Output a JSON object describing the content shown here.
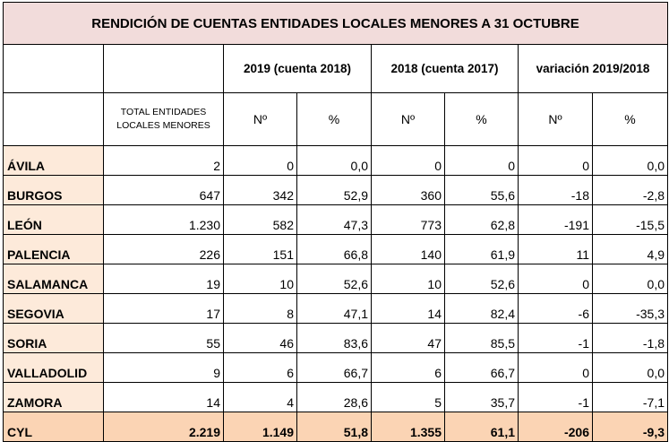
{
  "title": "RENDICIÓN DE CUENTAS ENTIDADES LOCALES MENORES A 31 OCTUBRE",
  "group_headers": [
    "2019 (cuenta 2018)",
    "2018 (cuenta 2017)",
    "variación 2019/2018"
  ],
  "total_header": "TOTAL ENTIDADES LOCALES MENORES",
  "sub_headers": [
    "Nº",
    "%",
    "Nº",
    "%",
    "Nº",
    "%"
  ],
  "rows": [
    {
      "region": "ÁVILA",
      "values": [
        "2",
        "0",
        "0,0",
        "0",
        "0",
        "0",
        "0,0"
      ]
    },
    {
      "region": "BURGOS",
      "values": [
        "647",
        "342",
        "52,9",
        "360",
        "55,6",
        "-18",
        "-2,8"
      ]
    },
    {
      "region": "LEÓN",
      "values": [
        "1.230",
        "582",
        "47,3",
        "773",
        "62,8",
        "-191",
        "-15,5"
      ]
    },
    {
      "region": "PALENCIA",
      "values": [
        "226",
        "151",
        "66,8",
        "140",
        "61,9",
        "11",
        "4,9"
      ]
    },
    {
      "region": "SALAMANCA",
      "values": [
        "19",
        "10",
        "52,6",
        "10",
        "52,6",
        "0",
        "0,0"
      ]
    },
    {
      "region": "SEGOVIA",
      "values": [
        "17",
        "8",
        "47,1",
        "14",
        "82,4",
        "-6",
        "-35,3"
      ]
    },
    {
      "region": "SORIA",
      "values": [
        "55",
        "46",
        "83,6",
        "47",
        "85,5",
        "-1",
        "-1,8"
      ]
    },
    {
      "region": "VALLADOLID",
      "values": [
        "9",
        "6",
        "66,7",
        "6",
        "66,7",
        "0",
        "0,0"
      ]
    },
    {
      "region": "ZAMORA",
      "values": [
        "14",
        "4",
        "28,6",
        "5",
        "35,7",
        "-1",
        "-7,1"
      ]
    }
  ],
  "total_row": {
    "region": "CYL",
    "values": [
      "2.219",
      "1.149",
      "51,8",
      "1.355",
      "61,1",
      "-206",
      "-9,3"
    ]
  },
  "colors": {
    "title_bg": "#f2dcdb",
    "region_bg": "#fdeada",
    "total_bg": "#fbd4b4"
  }
}
